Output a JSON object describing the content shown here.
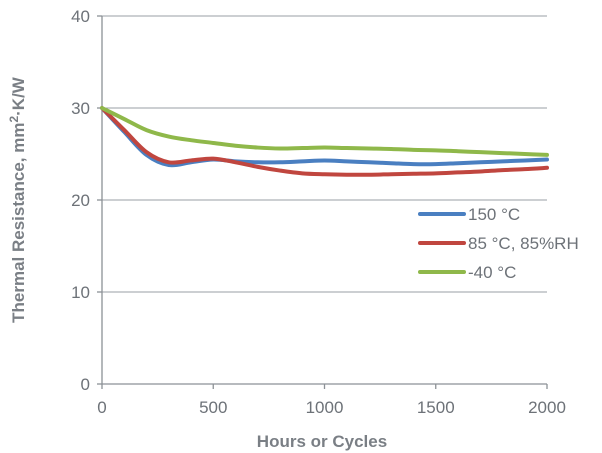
{
  "chart_data": {
    "type": "line",
    "title": "",
    "xlabel": "Hours or Cycles",
    "ylabel": "Thermal Resistance, mm²·K/W",
    "xlim": [
      0,
      2000
    ],
    "ylim": [
      0,
      40
    ],
    "xticks": [
      0,
      500,
      1000,
      1500,
      2000
    ],
    "yticks": [
      0,
      10,
      20,
      30,
      40
    ],
    "grid": "horizontal",
    "legend_position": "right-middle",
    "series": [
      {
        "name": "150 °C",
        "color": "#4a7fc1",
        "x": [
          0,
          100,
          200,
          300,
          400,
          500,
          600,
          700,
          800,
          900,
          1000,
          1100,
          1200,
          1300,
          1400,
          1500,
          1600,
          1700,
          1800,
          1900,
          2000
        ],
        "y": [
          30,
          27.4,
          24.9,
          23.8,
          24.1,
          24.4,
          24.2,
          24.1,
          24.1,
          24.2,
          24.3,
          24.2,
          24.1,
          24.0,
          23.9,
          23.9,
          24.0,
          24.1,
          24.2,
          24.3,
          24.4
        ]
      },
      {
        "name": "85 °C, 85%RH",
        "color": "#c0463f",
        "x": [
          0,
          100,
          200,
          300,
          400,
          500,
          600,
          700,
          800,
          900,
          1000,
          1100,
          1200,
          1300,
          1400,
          1500,
          1600,
          1700,
          1800,
          1900,
          2000
        ],
        "y": [
          30,
          27.6,
          25.2,
          24.1,
          24.3,
          24.5,
          24.1,
          23.6,
          23.2,
          22.9,
          22.8,
          22.75,
          22.75,
          22.8,
          22.85,
          22.9,
          23.0,
          23.1,
          23.25,
          23.35,
          23.5
        ]
      },
      {
        "name": "-40 °C",
        "color": "#8fb84a",
        "x": [
          0,
          100,
          200,
          300,
          400,
          500,
          600,
          700,
          800,
          900,
          1000,
          1100,
          1200,
          1300,
          1400,
          1500,
          1600,
          1700,
          1800,
          1900,
          2000
        ],
        "y": [
          30,
          28.8,
          27.6,
          26.9,
          26.5,
          26.2,
          25.9,
          25.7,
          25.6,
          25.65,
          25.7,
          25.65,
          25.6,
          25.55,
          25.45,
          25.4,
          25.3,
          25.2,
          25.1,
          25.0,
          24.9
        ]
      }
    ]
  }
}
